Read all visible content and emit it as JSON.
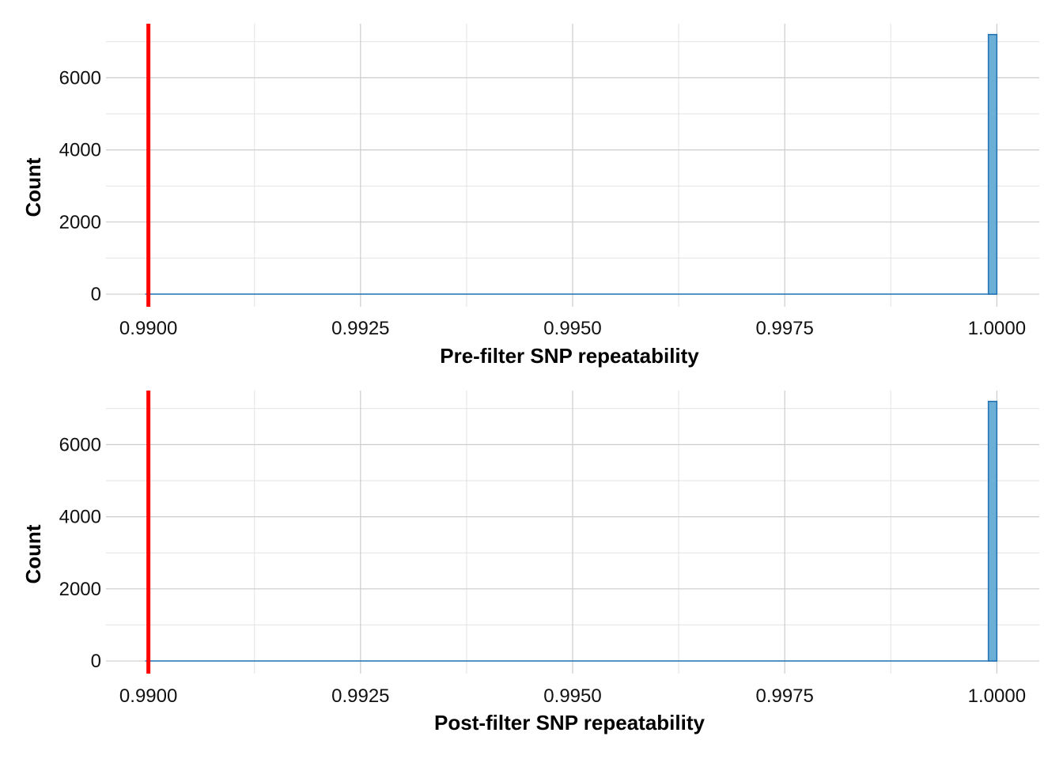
{
  "colors": {
    "background": "#ffffff",
    "grid_major": "#cccccc",
    "grid_minor": "#e3e3e3",
    "bar_fill": "#6baed6",
    "bar_stroke": "#2171b5",
    "threshold_line": "#ff0000"
  },
  "chart_data": [
    {
      "type": "bar",
      "title": "",
      "xlabel": "Pre-filter SNP repeatability",
      "ylabel": "Count",
      "xlim": [
        0.9895,
        1.0005
      ],
      "ylim": [
        -350,
        7500
      ],
      "x_ticks": [
        0.99,
        0.9925,
        0.995,
        0.9975,
        1.0
      ],
      "x_tick_labels": [
        "0.9900",
        "0.9925",
        "0.9950",
        "0.9975",
        "1.0000"
      ],
      "y_ticks": [
        0,
        2000,
        4000,
        6000
      ],
      "y_tick_labels": [
        "0",
        "2000",
        "4000",
        "6000"
      ],
      "bin_width": 0.0001,
      "bins": [
        {
          "x": 0.9999,
          "count": 7200
        }
      ],
      "threshold": 0.99,
      "grid": true
    },
    {
      "type": "bar",
      "title": "",
      "xlabel": "Post-filter SNP repeatability",
      "ylabel": "Count",
      "xlim": [
        0.9895,
        1.0005
      ],
      "ylim": [
        -350,
        7500
      ],
      "x_ticks": [
        0.99,
        0.9925,
        0.995,
        0.9975,
        1.0
      ],
      "x_tick_labels": [
        "0.9900",
        "0.9925",
        "0.9950",
        "0.9975",
        "1.0000"
      ],
      "y_ticks": [
        0,
        2000,
        4000,
        6000
      ],
      "y_tick_labels": [
        "0",
        "2000",
        "4000",
        "6000"
      ],
      "bin_width": 0.0001,
      "bins": [
        {
          "x": 0.9999,
          "count": 7200
        }
      ],
      "threshold": 0.99,
      "grid": true
    }
  ]
}
